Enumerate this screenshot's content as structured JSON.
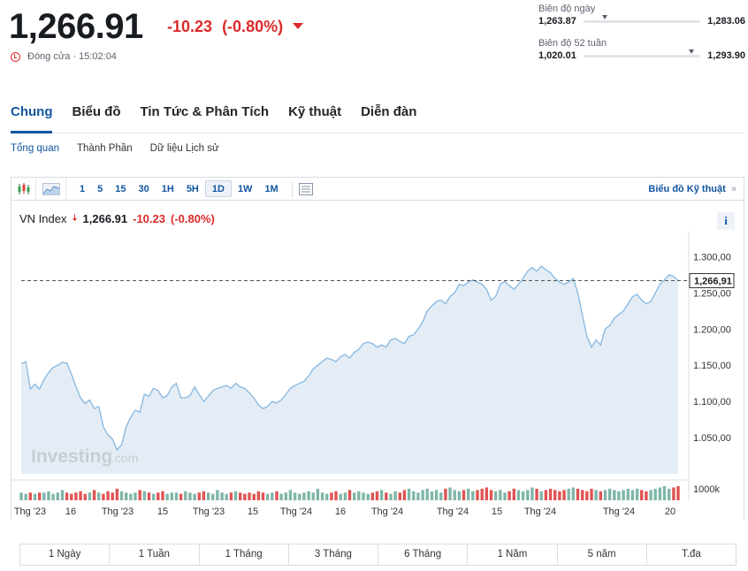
{
  "quote": {
    "price": "1,266.91",
    "change": "-10.23",
    "change_pct": "(-0.80%)",
    "close_status": "Đóng cửa · 15:02:04",
    "down_color": "#dd2a2a"
  },
  "day_range": {
    "label": "Biên độ ngày",
    "low": "1,263.87",
    "high": "1,283.06",
    "position": 0.16
  },
  "week52_range": {
    "label": "Biên độ 52 tuần",
    "low": "1,020.01",
    "high": "1,293.90",
    "position": 0.9
  },
  "tabs": [
    "Chung",
    "Biểu đồ",
    "Tin Tức & Phân Tích",
    "Kỹ thuật",
    "Diễn đàn"
  ],
  "subtabs": [
    "Tổng quan",
    "Thành Phần",
    "Dữ liệu Lịch sử"
  ],
  "toolbar": {
    "intervals": [
      "1",
      "5",
      "15",
      "30",
      "1H",
      "5H",
      "1D",
      "1W",
      "1M"
    ],
    "active_interval": "1D",
    "tech_chart_link": "Biểu đồ Kỹ thuật",
    "icons": [
      "candlestick-icon",
      "area-chart-icon",
      "table-icon"
    ]
  },
  "legend": {
    "symbol": "VN Index",
    "price": "1,266.91",
    "change": "-10.23",
    "change_pct": "(-0.80%)"
  },
  "watermark": {
    "text": "Investing",
    "suffix": ".com"
  },
  "period_buttons": [
    "1 Ngày",
    "1 Tuần",
    "1 Tháng",
    "3 Tháng",
    "6 Tháng",
    "1 Năm",
    "5 năm",
    "T.đa"
  ],
  "chart_data": {
    "type": "area",
    "y_ticks": [
      "1.300,00",
      "1.250,00",
      "1.200,00",
      "1.150,00",
      "1.100,00",
      "1.050,00"
    ],
    "y_tick_values": [
      1300,
      1250,
      1200,
      1150,
      1100,
      1050
    ],
    "ylim": [
      1000,
      1325
    ],
    "last_price_label": "1,266,91",
    "last_price": 1266.91,
    "volume_label": "1000k",
    "x_ticks": [
      "Thg '23",
      "16",
      "Thg '23",
      "15",
      "Thg '23",
      "15",
      "Thg '24",
      "16",
      "Thg '24",
      "Thg '24",
      "15",
      "Thg '24",
      "Thg '24",
      "20"
    ],
    "values": [
      1152,
      1155,
      1117,
      1124,
      1117,
      1130,
      1140,
      1147,
      1150,
      1154,
      1153,
      1138,
      1120,
      1105,
      1097,
      1102,
      1090,
      1093,
      1065,
      1054,
      1048,
      1033,
      1040,
      1065,
      1078,
      1088,
      1085,
      1110,
      1107,
      1118,
      1115,
      1105,
      1108,
      1120,
      1125,
      1105,
      1105,
      1108,
      1120,
      1110,
      1100,
      1107,
      1115,
      1118,
      1120,
      1122,
      1118,
      1125,
      1120,
      1118,
      1112,
      1105,
      1095,
      1090,
      1093,
      1100,
      1098,
      1102,
      1110,
      1118,
      1122,
      1125,
      1128,
      1135,
      1145,
      1150,
      1155,
      1160,
      1158,
      1155,
      1162,
      1165,
      1160,
      1168,
      1172,
      1180,
      1182,
      1180,
      1175,
      1178,
      1175,
      1185,
      1187,
      1183,
      1180,
      1190,
      1192,
      1200,
      1210,
      1225,
      1232,
      1238,
      1240,
      1235,
      1245,
      1250,
      1262,
      1260,
      1265,
      1268,
      1265,
      1262,
      1255,
      1240,
      1245,
      1262,
      1266,
      1260,
      1255,
      1262,
      1270,
      1280,
      1285,
      1280,
      1287,
      1282,
      1278,
      1270,
      1265,
      1262,
      1265,
      1270,
      1250,
      1220,
      1190,
      1175,
      1185,
      1178,
      1200,
      1205,
      1215,
      1220,
      1225,
      1235,
      1245,
      1248,
      1240,
      1235,
      1238,
      1250,
      1262,
      1268,
      1275,
      1273,
      1266.91
    ],
    "volumes": [
      6,
      5,
      6,
      5,
      6,
      6,
      7,
      5,
      6,
      8,
      6,
      5,
      6,
      7,
      5,
      6,
      8,
      6,
      5,
      7,
      6,
      9,
      7,
      6,
      5,
      6,
      8,
      7,
      6,
      5,
      6,
      7,
      5,
      6,
      6,
      5,
      7,
      6,
      5,
      6,
      7,
      6,
      5,
      8,
      6,
      5,
      6,
      7,
      6,
      5,
      6,
      5,
      7,
      6,
      5,
      6,
      7,
      5,
      6,
      8,
      6,
      5,
      6,
      7,
      6,
      9,
      6,
      5,
      6,
      7,
      5,
      6,
      8,
      6,
      7,
      6,
      5,
      6,
      7,
      8,
      6,
      5,
      7,
      6,
      8,
      9,
      7,
      6,
      8,
      9,
      7,
      8,
      6,
      9,
      10,
      8,
      7,
      8,
      9,
      7,
      8,
      9,
      10,
      8,
      7,
      8,
      6,
      7,
      9,
      8,
      7,
      8,
      10,
      9,
      7,
      8,
      9,
      8,
      7,
      8,
      9,
      10,
      9,
      8,
      7,
      9,
      8,
      7,
      8,
      9,
      8,
      7,
      8,
      9,
      8,
      9,
      8,
      7,
      8,
      9,
      10,
      11,
      9,
      10,
      11
    ],
    "volume_up_color": "#e05454",
    "volume_down_color": "#7fb6a9",
    "line_color": "#8cbbe2",
    "fill_color": "#e4edf6"
  }
}
